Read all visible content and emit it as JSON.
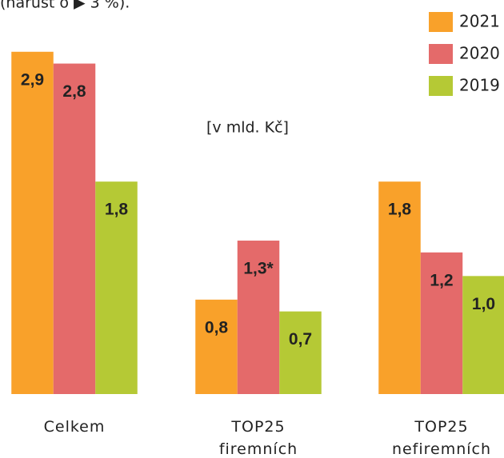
{
  "chart_data": {
    "type": "bar",
    "subtitle": "(nárůst o ▶ 3 %).",
    "unit_label": "[v mld. Kč]",
    "categories": [
      "Celkem",
      "TOP25 firemních",
      "TOP25 nefiremních"
    ],
    "series": [
      {
        "name": "2021",
        "color": "#f9a12a",
        "values": [
          2.9,
          0.8,
          1.8
        ],
        "value_labels": [
          "2,9",
          "0,8",
          "1,8"
        ]
      },
      {
        "name": "2020",
        "color": "#e46a6a",
        "values": [
          2.8,
          1.3,
          1.2
        ],
        "value_labels": [
          "2,8",
          "1,3*",
          "1,2"
        ]
      },
      {
        "name": "2019",
        "color": "#b5c935",
        "values": [
          1.8,
          0.7,
          1.0
        ],
        "value_labels": [
          "1,8",
          "0,7",
          "1,0"
        ]
      }
    ],
    "ylim": [
      0,
      3
    ],
    "legend": "top-right"
  }
}
